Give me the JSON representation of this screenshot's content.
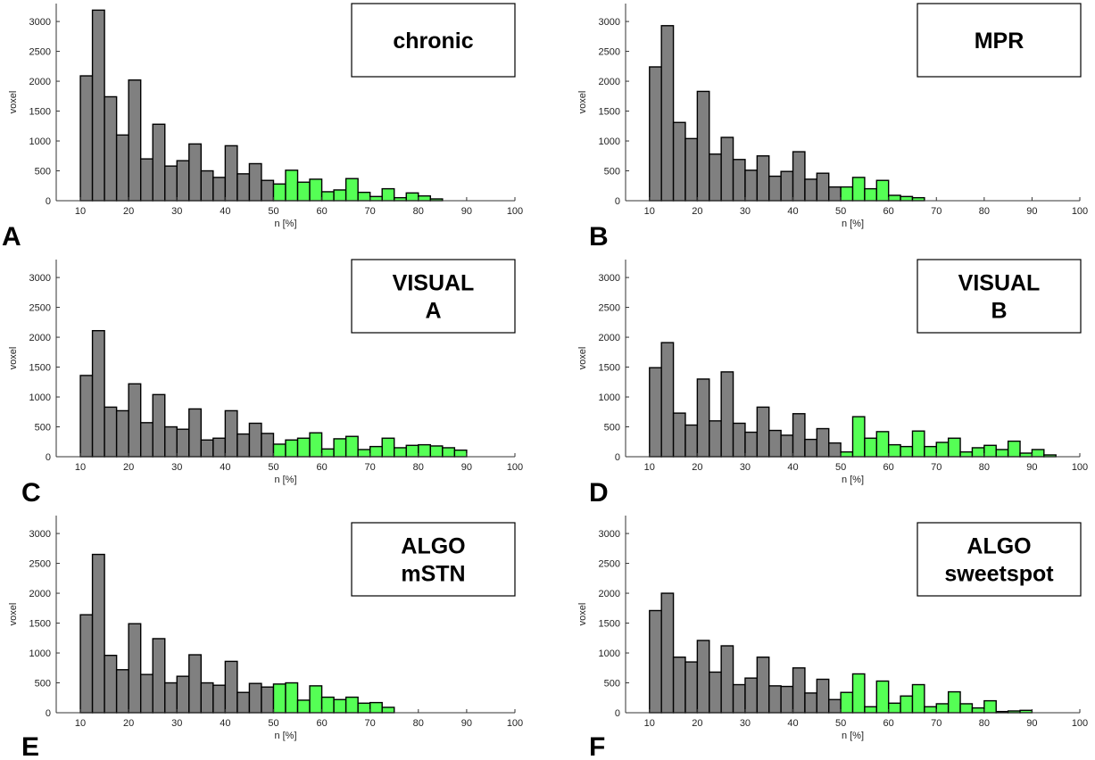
{
  "figure": {
    "colors": {
      "below": "#808080",
      "above": "#55ff55",
      "edge": "#000000",
      "axis": "#333333"
    },
    "xlabel": "n [%]",
    "ylabel": "voxel"
  },
  "chart_data": [
    {
      "type": "bar",
      "letter": "A",
      "legend": [
        "chronic"
      ],
      "xlabel": "n [%]",
      "ylabel": "voxel",
      "xlim": [
        5,
        100
      ],
      "ylim": [
        0,
        3300
      ],
      "xticks": [
        10,
        20,
        30,
        40,
        50,
        60,
        70,
        80,
        90,
        100
      ],
      "yticks": [
        0,
        500,
        1000,
        1500,
        2000,
        2500,
        3000
      ],
      "bin_start": 10,
      "bin_width": 2.5,
      "threshold": 50,
      "values": [
        2090,
        3190,
        1740,
        1100,
        2020,
        700,
        1280,
        580,
        670,
        950,
        500,
        390,
        920,
        450,
        620,
        340,
        280,
        510,
        310,
        360,
        150,
        180,
        370,
        140,
        70,
        200,
        50,
        130,
        80,
        30
      ]
    },
    {
      "type": "bar",
      "letter": "B",
      "legend": [
        "MPR"
      ],
      "xlabel": "n [%]",
      "ylabel": "voxel",
      "xlim": [
        5,
        100
      ],
      "ylim": [
        0,
        3300
      ],
      "xticks": [
        10,
        20,
        30,
        40,
        50,
        60,
        70,
        80,
        90,
        100
      ],
      "yticks": [
        0,
        500,
        1000,
        1500,
        2000,
        2500,
        3000
      ],
      "bin_start": 10,
      "bin_width": 2.5,
      "threshold": 50,
      "values": [
        2240,
        2930,
        1310,
        1040,
        1830,
        780,
        1060,
        690,
        510,
        750,
        410,
        490,
        820,
        360,
        460,
        230,
        230,
        390,
        200,
        340,
        90,
        70,
        50
      ]
    },
    {
      "type": "bar",
      "letter": "C",
      "legend": [
        "VISUAL",
        "A"
      ],
      "xlabel": "n [%]",
      "ylabel": "voxel",
      "xlim": [
        5,
        100
      ],
      "ylim": [
        0,
        3300
      ],
      "xticks": [
        10,
        20,
        30,
        40,
        50,
        60,
        70,
        80,
        90,
        100
      ],
      "yticks": [
        0,
        500,
        1000,
        1500,
        2000,
        2500,
        3000
      ],
      "bin_start": 10,
      "bin_width": 2.5,
      "threshold": 50,
      "values": [
        1360,
        2110,
        830,
        770,
        1220,
        570,
        1040,
        500,
        460,
        800,
        280,
        310,
        770,
        380,
        560,
        390,
        210,
        280,
        310,
        400,
        130,
        300,
        340,
        120,
        170,
        310,
        150,
        190,
        200,
        180,
        150,
        110
      ]
    },
    {
      "type": "bar",
      "letter": "D",
      "legend": [
        "VISUAL",
        "B"
      ],
      "xlabel": "n [%]",
      "ylabel": "voxel",
      "xlim": [
        5,
        100
      ],
      "ylim": [
        0,
        3300
      ],
      "xticks": [
        10,
        20,
        30,
        40,
        50,
        60,
        70,
        80,
        90,
        100
      ],
      "yticks": [
        0,
        500,
        1000,
        1500,
        2000,
        2500,
        3000
      ],
      "bin_start": 10,
      "bin_width": 2.5,
      "threshold": 50,
      "values": [
        1490,
        1910,
        730,
        530,
        1300,
        600,
        1420,
        560,
        410,
        830,
        440,
        360,
        720,
        290,
        470,
        230,
        80,
        670,
        310,
        420,
        200,
        170,
        430,
        170,
        240,
        310,
        80,
        150,
        190,
        120,
        260,
        60,
        120,
        30
      ]
    },
    {
      "type": "bar",
      "letter": "E",
      "legend": [
        "ALGO",
        "mSTN"
      ],
      "xlabel": "n [%]",
      "ylabel": "voxel",
      "xlim": [
        5,
        100
      ],
      "ylim": [
        0,
        3300
      ],
      "xticks": [
        10,
        20,
        30,
        40,
        50,
        60,
        70,
        80,
        90,
        100
      ],
      "yticks": [
        0,
        500,
        1000,
        1500,
        2000,
        2500,
        3000
      ],
      "bin_start": 10,
      "bin_width": 2.5,
      "threshold": 50,
      "values": [
        1640,
        2650,
        960,
        720,
        1490,
        640,
        1240,
        500,
        610,
        970,
        500,
        460,
        860,
        340,
        490,
        430,
        480,
        500,
        210,
        450,
        260,
        220,
        260,
        160,
        170,
        90
      ]
    },
    {
      "type": "bar",
      "letter": "F",
      "legend": [
        "ALGO",
        "sweetspot"
      ],
      "xlabel": "n [%]",
      "ylabel": "voxel",
      "xlim": [
        5,
        100
      ],
      "ylim": [
        0,
        3300
      ],
      "xticks": [
        10,
        20,
        30,
        40,
        50,
        60,
        70,
        80,
        90,
        100
      ],
      "yticks": [
        0,
        500,
        1000,
        1500,
        2000,
        2500,
        3000
      ],
      "bin_start": 10,
      "bin_width": 2.5,
      "threshold": 50,
      "values": [
        1710,
        2000,
        930,
        850,
        1210,
        680,
        1120,
        470,
        580,
        930,
        450,
        440,
        750,
        330,
        560,
        220,
        340,
        650,
        100,
        530,
        160,
        280,
        470,
        100,
        150,
        350,
        150,
        80,
        200,
        20,
        30,
        40
      ]
    }
  ]
}
